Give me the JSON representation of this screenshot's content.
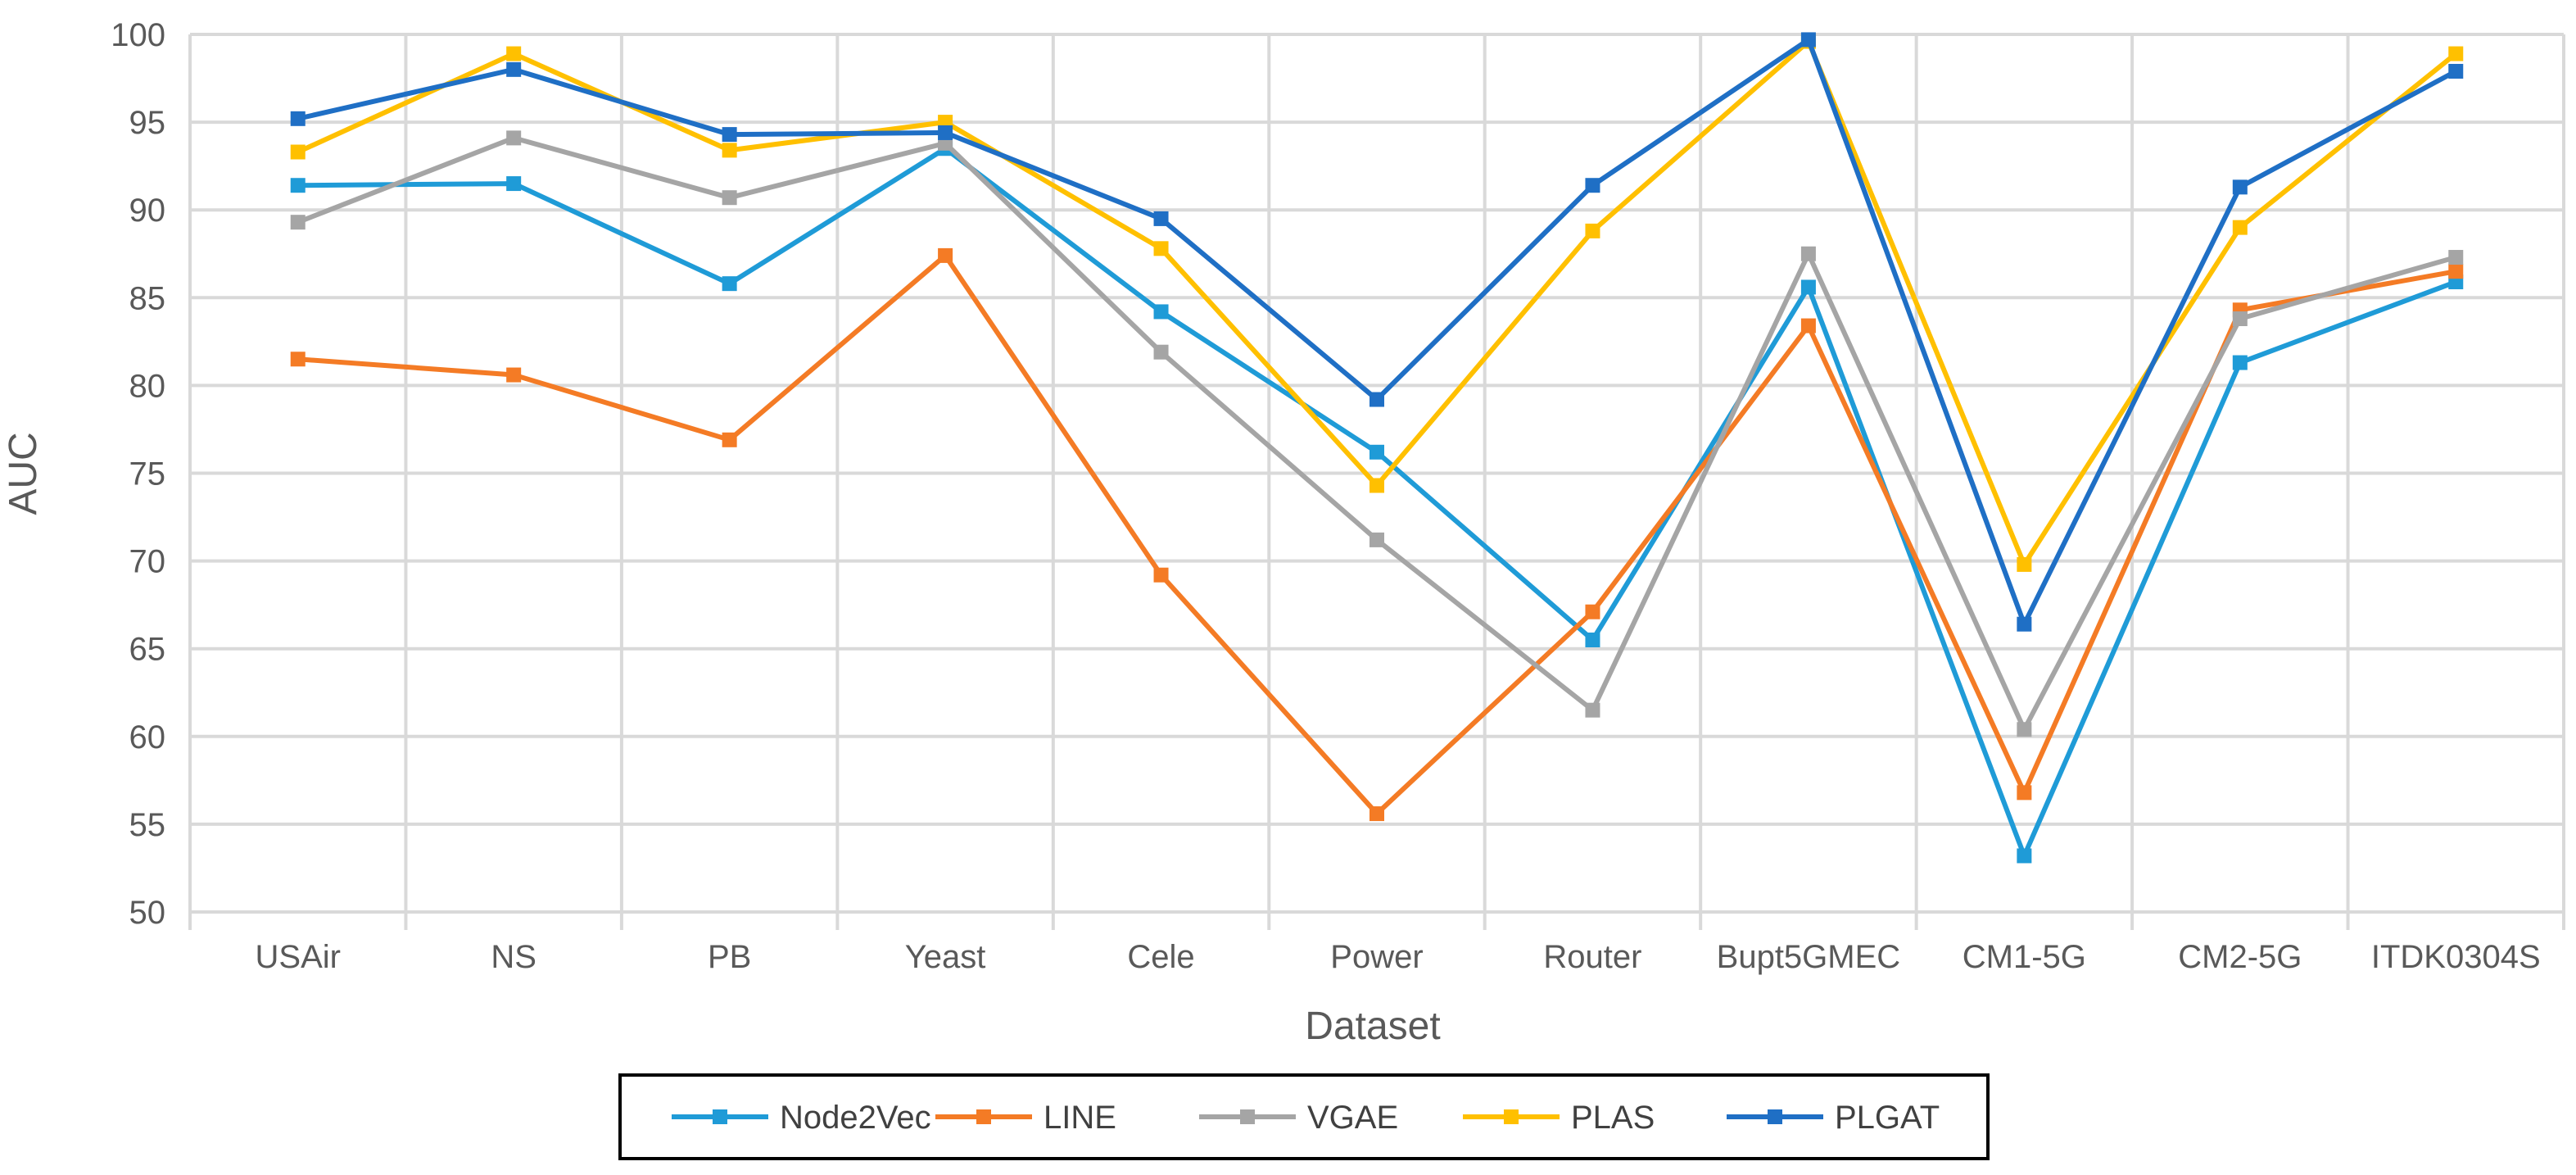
{
  "chart_data": {
    "type": "line",
    "title": "",
    "xlabel": "Dataset",
    "ylabel": "AUC",
    "ylim": [
      50,
      100
    ],
    "yticks": [
      50,
      55,
      60,
      65,
      70,
      75,
      80,
      85,
      90,
      95,
      100
    ],
    "grid": true,
    "legend_position": "bottom",
    "categories": [
      "USAir",
      "NS",
      "PB",
      "Yeast",
      "Cele",
      "Power",
      "Router",
      "Bupt5GMEC",
      "CM1-5G",
      "CM2-5G",
      "ITDK0304S"
    ],
    "series": [
      {
        "name": "Node2Vec",
        "color": "#1F9BD7",
        "values": [
          91.4,
          91.5,
          85.8,
          93.5,
          84.2,
          76.2,
          65.5,
          85.6,
          53.2,
          81.3,
          85.9
        ]
      },
      {
        "name": "LINE",
        "color": "#F47B25",
        "values": [
          81.5,
          80.6,
          76.9,
          87.4,
          69.2,
          55.6,
          67.1,
          83.4,
          56.8,
          84.3,
          86.5
        ]
      },
      {
        "name": "VGAE",
        "color": "#A5A5A5",
        "values": [
          89.3,
          94.1,
          90.7,
          93.8,
          81.9,
          71.2,
          61.5,
          87.5,
          60.4,
          83.8,
          87.3
        ]
      },
      {
        "name": "PLAS",
        "color": "#FFC000",
        "values": [
          93.3,
          98.9,
          93.4,
          95.0,
          87.8,
          74.3,
          88.8,
          99.6,
          69.8,
          89.0,
          98.9
        ]
      },
      {
        "name": "PLGAT",
        "color": "#1F6FC5",
        "values": [
          95.2,
          98.0,
          94.3,
          94.4,
          89.5,
          79.2,
          91.4,
          99.7,
          66.4,
          91.3,
          97.9
        ]
      }
    ]
  }
}
